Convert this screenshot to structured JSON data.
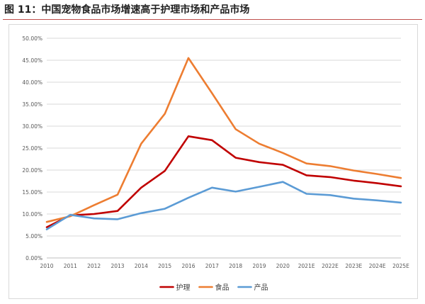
{
  "figure_title": "图 11：中国宠物食品市场增速高于护理市场和产品市场",
  "colors": {
    "rule": "#c0504d",
    "grid": "#d9d9d9",
    "axis_text": "#595959"
  },
  "chart_data": {
    "type": "line",
    "title": "",
    "xlabel": "",
    "ylabel": "",
    "x": [
      "2010",
      "2011",
      "2012",
      "2013",
      "2014",
      "2015",
      "2016",
      "2017",
      "2018",
      "2019",
      "2020",
      "2021E",
      "2022E",
      "2023E",
      "2024E",
      "2025E"
    ],
    "y_ticks": [
      "0.00%",
      "5.00%",
      "10.00%",
      "15.00%",
      "20.00%",
      "25.00%",
      "30.00%",
      "35.00%",
      "40.00%",
      "45.00%",
      "50.00%"
    ],
    "ylim": [
      0,
      50
    ],
    "y_unit": "%",
    "grid": true,
    "legend_position": "bottom-center",
    "series": [
      {
        "name": "护理",
        "color": "#c00000",
        "values": [
          7.0,
          9.7,
          10.0,
          10.7,
          16.0,
          19.8,
          27.7,
          26.8,
          22.8,
          21.8,
          21.2,
          18.8,
          18.4,
          17.6,
          17.0,
          16.3
        ]
      },
      {
        "name": "食品",
        "color": "#ed7d31",
        "values": [
          8.2,
          9.5,
          12.0,
          14.4,
          26.0,
          32.8,
          45.5,
          37.5,
          29.3,
          26.0,
          23.9,
          21.5,
          20.9,
          19.9,
          19.1,
          18.2
        ]
      },
      {
        "name": "产品",
        "color": "#5b9bd5",
        "values": [
          6.5,
          9.8,
          9.0,
          8.8,
          10.2,
          11.2,
          13.7,
          16.0,
          15.1,
          16.2,
          17.3,
          14.6,
          14.3,
          13.5,
          13.1,
          12.6
        ]
      }
    ]
  }
}
